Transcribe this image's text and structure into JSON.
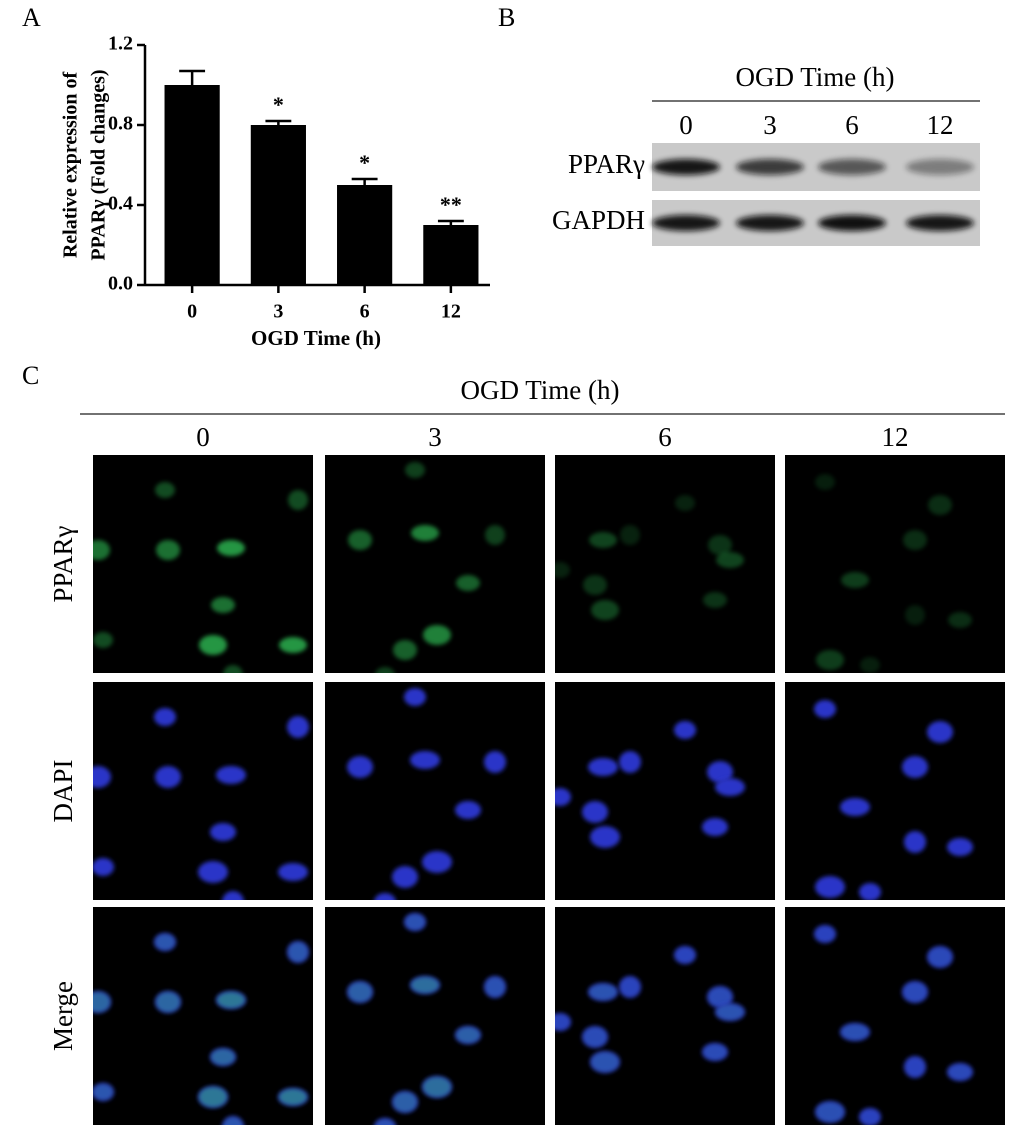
{
  "panel_labels": [
    "A",
    "B",
    "C"
  ],
  "chart_data": {
    "type": "bar",
    "ylabel": [
      "Relative expression of",
      "PPARγ (Fold changes)"
    ],
    "xlabel": "OGD Time (h)",
    "categories": [
      "0",
      "3",
      "6",
      "12"
    ],
    "values": [
      1.0,
      0.8,
      0.5,
      0.3
    ],
    "errors": [
      0.07,
      0.02,
      0.03,
      0.02
    ],
    "annotations": [
      null,
      "*",
      "*",
      "**"
    ],
    "color": "#000000",
    "ylim": [
      0,
      1.2
    ],
    "yticks": [
      {
        "value": 0,
        "label": "0.0"
      },
      {
        "value": 0.4,
        "label": "0.4"
      },
      {
        "value": 0.8,
        "label": "0.8"
      },
      {
        "value": 1.2,
        "label": "1.2"
      }
    ]
  },
  "blot": {
    "title": "OGD Time (h)",
    "lanes": [
      "0",
      "3",
      "6",
      "12"
    ],
    "rows": [
      "PPARγ",
      "GAPDH"
    ]
  },
  "imaging": {
    "title": "OGD Time (h)",
    "columns": [
      "0",
      "3",
      "6",
      "12"
    ],
    "rows": [
      "PPARγ",
      "DAPI",
      "Merge"
    ]
  }
}
